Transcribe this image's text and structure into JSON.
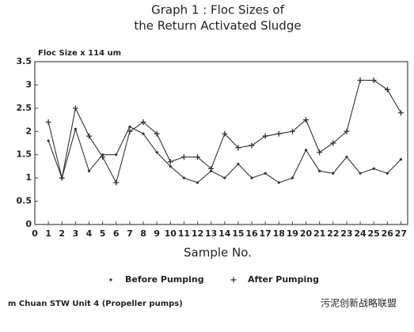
{
  "chart_data": {
    "type": "line",
    "title": "Graph 1   :   Floc Sizes of",
    "subtitle": "the Return Activated Sludge",
    "y_label": "Floc Size  x 114 um",
    "x_label": "Sample No.",
    "x": [
      1,
      2,
      3,
      4,
      5,
      6,
      7,
      8,
      9,
      10,
      11,
      12,
      13,
      14,
      15,
      16,
      17,
      18,
      19,
      20,
      21,
      22,
      23,
      24,
      25,
      26,
      27
    ],
    "series": [
      {
        "name": "Before Pumping",
        "color": "#333333",
        "marker": "dot",
        "values": [
          1.8,
          1.0,
          2.05,
          1.15,
          1.5,
          1.5,
          2.1,
          1.95,
          1.55,
          1.25,
          1.0,
          0.9,
          1.15,
          1.0,
          1.3,
          1.0,
          1.1,
          0.9,
          1.0,
          1.6,
          1.15,
          1.1,
          1.45,
          1.1,
          1.2,
          1.1,
          1.4
        ]
      },
      {
        "name": "After Pumping",
        "color": "#333333",
        "marker": "plus",
        "values": [
          2.2,
          1.0,
          2.5,
          1.9,
          1.45,
          0.9,
          2.0,
          2.2,
          1.95,
          1.35,
          1.45,
          1.45,
          1.2,
          1.95,
          1.65,
          1.7,
          1.9,
          1.95,
          2.0,
          2.25,
          1.55,
          1.75,
          2.0,
          3.1,
          3.1,
          2.9,
          2.4
        ]
      }
    ],
    "xlim": [
      0,
      27.5
    ],
    "xticks": [
      0,
      1,
      2,
      3,
      4,
      5,
      6,
      7,
      8,
      9,
      10,
      11,
      12,
      13,
      14,
      15,
      16,
      17,
      18,
      19,
      20,
      21,
      22,
      23,
      24,
      25,
      26,
      27
    ],
    "ylim": [
      0,
      3.5
    ],
    "yticks": [
      0,
      0.5,
      1,
      1.5,
      2,
      2.5,
      3,
      3.5
    ],
    "grid": false,
    "footnote": "m Chuan STW Unit 4 (Propeller pumps)",
    "watermark": "污泥创新战略联盟"
  }
}
